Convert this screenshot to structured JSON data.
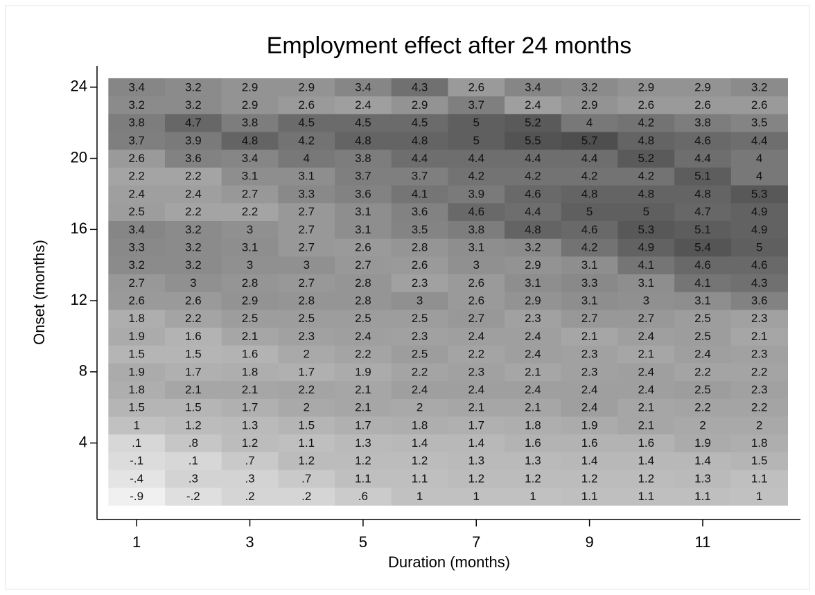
{
  "chart_data": {
    "type": "heatmap",
    "title": "Employment effect after 24 months",
    "x_label": "Duration (months)",
    "y_label": "Onset (months)",
    "x": [
      1,
      2,
      3,
      4,
      5,
      6,
      7,
      8,
      9,
      10,
      11,
      12
    ],
    "y": [
      1,
      2,
      3,
      4,
      5,
      6,
      7,
      8,
      9,
      10,
      11,
      12,
      13,
      14,
      15,
      16,
      17,
      18,
      19,
      20,
      21,
      22,
      23,
      24
    ],
    "values": [
      [
        -0.9,
        -0.2,
        0.2,
        0.2,
        0.6,
        1,
        1,
        1,
        1.1,
        1.1,
        1.1,
        1
      ],
      [
        -0.4,
        0.3,
        0.3,
        0.7,
        1.1,
        1.1,
        1.2,
        1.2,
        1.2,
        1.2,
        1.3,
        1.1
      ],
      [
        -0.1,
        0.1,
        0.7,
        1.2,
        1.2,
        1.2,
        1.3,
        1.3,
        1.4,
        1.4,
        1.4,
        1.5
      ],
      [
        0.1,
        0.8,
        1.2,
        1.1,
        1.3,
        1.4,
        1.4,
        1.6,
        1.6,
        1.6,
        1.9,
        1.8
      ],
      [
        1,
        1.2,
        1.3,
        1.5,
        1.7,
        1.8,
        1.7,
        1.8,
        1.9,
        2.1,
        2,
        2
      ],
      [
        1.5,
        1.5,
        1.7,
        2,
        2.1,
        2,
        2.1,
        2.1,
        2.4,
        2.1,
        2.2,
        2.2
      ],
      [
        1.8,
        2.1,
        2.1,
        2.2,
        2.1,
        2.4,
        2.4,
        2.4,
        2.4,
        2.4,
        2.5,
        2.3
      ],
      [
        1.9,
        1.7,
        1.8,
        1.7,
        1.9,
        2.2,
        2.3,
        2.1,
        2.3,
        2.4,
        2.2,
        2.2
      ],
      [
        1.5,
        1.5,
        1.6,
        2,
        2.2,
        2.5,
        2.2,
        2.4,
        2.3,
        2.1,
        2.4,
        2.3
      ],
      [
        1.9,
        1.6,
        2.1,
        2.3,
        2.4,
        2.3,
        2.4,
        2.4,
        2.1,
        2.4,
        2.5,
        2.1
      ],
      [
        1.8,
        2.2,
        2.5,
        2.5,
        2.5,
        2.5,
        2.7,
        2.3,
        2.7,
        2.7,
        2.5,
        2.3
      ],
      [
        2.6,
        2.6,
        2.9,
        2.8,
        2.8,
        3,
        2.6,
        2.9,
        3.1,
        3,
        3.1,
        3.6
      ],
      [
        2.7,
        3,
        2.8,
        2.7,
        2.8,
        2.3,
        2.6,
        3.1,
        3.3,
        3.1,
        4.1,
        4.3
      ],
      [
        3.2,
        3.2,
        3,
        3,
        2.7,
        2.6,
        3,
        2.9,
        3.1,
        4.1,
        4.6,
        4.6
      ],
      [
        3.3,
        3.2,
        3.1,
        2.7,
        2.6,
        2.8,
        3.1,
        3.2,
        4.2,
        4.9,
        5.4,
        5
      ],
      [
        3.4,
        3.2,
        3,
        2.7,
        3.1,
        3.5,
        3.8,
        4.8,
        4.6,
        5.3,
        5.1,
        4.9
      ],
      [
        2.5,
        2.2,
        2.2,
        2.7,
        3.1,
        3.6,
        4.6,
        4.4,
        5,
        5,
        4.7,
        4.9
      ],
      [
        2.4,
        2.4,
        2.7,
        3.3,
        3.6,
        4.1,
        3.9,
        4.6,
        4.8,
        4.8,
        4.8,
        5.3
      ],
      [
        2.2,
        2.2,
        3.1,
        3.1,
        3.7,
        3.7,
        4.2,
        4.2,
        4.2,
        4.2,
        5.1,
        4
      ],
      [
        2.6,
        3.6,
        3.4,
        4,
        3.8,
        4.4,
        4.4,
        4.4,
        4.4,
        5.2,
        4.4,
        4
      ],
      [
        3.7,
        3.9,
        4.8,
        4.2,
        4.8,
        4.8,
        5,
        5.5,
        5.7,
        4.8,
        4.6,
        4.4
      ],
      [
        3.8,
        4.7,
        3.8,
        4.5,
        4.5,
        4.5,
        5,
        5.2,
        4,
        4.2,
        3.8,
        3.5
      ],
      [
        3.2,
        3.2,
        2.9,
        2.6,
        2.4,
        2.9,
        3.7,
        2.4,
        2.9,
        2.6,
        2.6,
        2.6
      ],
      [
        3.4,
        3.2,
        2.9,
        2.9,
        3.4,
        4.3,
        2.6,
        3.4,
        3.2,
        2.9,
        2.9,
        3.2
      ]
    ],
    "value_labels": [
      [
        "-.9",
        "-.2",
        ".2",
        ".2",
        ".6",
        "1",
        "1",
        "1",
        "1.1",
        "1.1",
        "1.1",
        "1"
      ],
      [
        "-.4",
        ".3",
        ".3",
        ".7",
        "1.1",
        "1.1",
        "1.2",
        "1.2",
        "1.2",
        "1.2",
        "1.3",
        "1.1"
      ],
      [
        "-.1",
        ".1",
        ".7",
        "1.2",
        "1.2",
        "1.2",
        "1.3",
        "1.3",
        "1.4",
        "1.4",
        "1.4",
        "1.5"
      ],
      [
        ".1",
        ".8",
        "1.2",
        "1.1",
        "1.3",
        "1.4",
        "1.4",
        "1.6",
        "1.6",
        "1.6",
        "1.9",
        "1.8"
      ],
      [
        "1",
        "1.2",
        "1.3",
        "1.5",
        "1.7",
        "1.8",
        "1.7",
        "1.8",
        "1.9",
        "2.1",
        "2",
        "2"
      ],
      [
        "1.5",
        "1.5",
        "1.7",
        "2",
        "2.1",
        "2",
        "2.1",
        "2.1",
        "2.4",
        "2.1",
        "2.2",
        "2.2"
      ],
      [
        "1.8",
        "2.1",
        "2.1",
        "2.2",
        "2.1",
        "2.4",
        "2.4",
        "2.4",
        "2.4",
        "2.4",
        "2.5",
        "2.3"
      ],
      [
        "1.9",
        "1.7",
        "1.8",
        "1.7",
        "1.9",
        "2.2",
        "2.3",
        "2.1",
        "2.3",
        "2.4",
        "2.2",
        "2.2"
      ],
      [
        "1.5",
        "1.5",
        "1.6",
        "2",
        "2.2",
        "2.5",
        "2.2",
        "2.4",
        "2.3",
        "2.1",
        "2.4",
        "2.3"
      ],
      [
        "1.9",
        "1.6",
        "2.1",
        "2.3",
        "2.4",
        "2.3",
        "2.4",
        "2.4",
        "2.1",
        "2.4",
        "2.5",
        "2.1"
      ],
      [
        "1.8",
        "2.2",
        "2.5",
        "2.5",
        "2.5",
        "2.5",
        "2.7",
        "2.3",
        "2.7",
        "2.7",
        "2.5",
        "2.3"
      ],
      [
        "2.6",
        "2.6",
        "2.9",
        "2.8",
        "2.8",
        "3",
        "2.6",
        "2.9",
        "3.1",
        "3",
        "3.1",
        "3.6"
      ],
      [
        "2.7",
        "3",
        "2.8",
        "2.7",
        "2.8",
        "2.3",
        "2.6",
        "3.1",
        "3.3",
        "3.1",
        "4.1",
        "4.3"
      ],
      [
        "3.2",
        "3.2",
        "3",
        "3",
        "2.7",
        "2.6",
        "3",
        "2.9",
        "3.1",
        "4.1",
        "4.6",
        "4.6"
      ],
      [
        "3.3",
        "3.2",
        "3.1",
        "2.7",
        "2.6",
        "2.8",
        "3.1",
        "3.2",
        "4.2",
        "4.9",
        "5.4",
        "5"
      ],
      [
        "3.4",
        "3.2",
        "3",
        "2.7",
        "3.1",
        "3.5",
        "3.8",
        "4.8",
        "4.6",
        "5.3",
        "5.1",
        "4.9"
      ],
      [
        "2.5",
        "2.2",
        "2.2",
        "2.7",
        "3.1",
        "3.6",
        "4.6",
        "4.4",
        "5",
        "5",
        "4.7",
        "4.9"
      ],
      [
        "2.4",
        "2.4",
        "2.7",
        "3.3",
        "3.6",
        "4.1",
        "3.9",
        "4.6",
        "4.8",
        "4.8",
        "4.8",
        "5.3"
      ],
      [
        "2.2",
        "2.2",
        "3.1",
        "3.1",
        "3.7",
        "3.7",
        "4.2",
        "4.2",
        "4.2",
        "4.2",
        "5.1",
        "4"
      ],
      [
        "2.6",
        "3.6",
        "3.4",
        "4",
        "3.8",
        "4.4",
        "4.4",
        "4.4",
        "4.4",
        "5.2",
        "4.4",
        "4"
      ],
      [
        "3.7",
        "3.9",
        "4.8",
        "4.2",
        "4.8",
        "4.8",
        "5",
        "5.5",
        "5.7",
        "4.8",
        "4.6",
        "4.4"
      ],
      [
        "3.8",
        "4.7",
        "3.8",
        "4.5",
        "4.5",
        "4.5",
        "5",
        "5.2",
        "4",
        "4.2",
        "3.8",
        "3.5"
      ],
      [
        "3.2",
        "3.2",
        "2.9",
        "2.6",
        "2.4",
        "2.9",
        "3.7",
        "2.4",
        "2.9",
        "2.6",
        "2.6",
        "2.6"
      ],
      [
        "3.4",
        "3.2",
        "2.9",
        "2.9",
        "3.4",
        "4.3",
        "2.6",
        "3.4",
        "3.2",
        "2.9",
        "2.9",
        "3.2"
      ]
    ],
    "color_range": [
      "#f0f0f0",
      "#4e4e4e"
    ],
    "xlim": [
      0.3,
      12.5
    ],
    "xticks": [
      1,
      3,
      5,
      7,
      9,
      11
    ],
    "ylim": [
      -0.3,
      25.2
    ],
    "yticks": [
      4,
      8,
      12,
      16,
      20,
      24
    ]
  }
}
